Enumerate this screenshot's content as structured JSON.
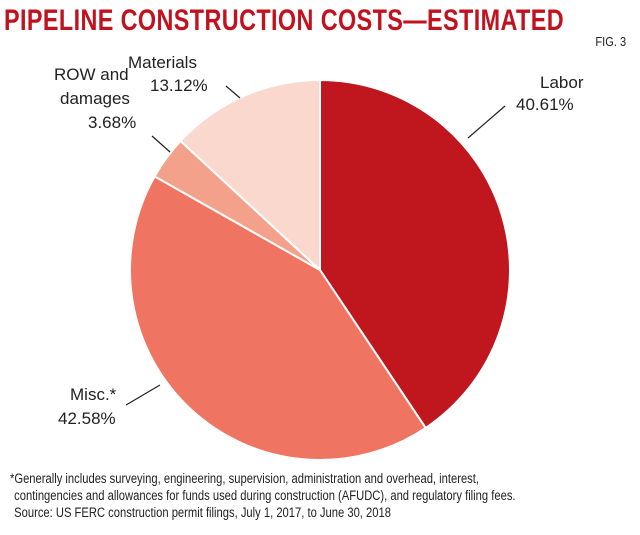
{
  "chart_data": {
    "type": "pie",
    "title": "PIPELINE CONSTRUCTION COSTS—ESTIMATED",
    "figure_label": "FIG. 3",
    "slices": [
      {
        "label": "Labor",
        "value": 40.61,
        "value_label": "40.61%",
        "color": "#c0161e"
      },
      {
        "label": "Misc.*",
        "value": 42.58,
        "value_label": "42.58%",
        "color": "#f07462"
      },
      {
        "label": "ROW and damages",
        "label_lines": [
          "ROW and",
          "damages"
        ],
        "value": 3.68,
        "value_label": "3.68%",
        "color": "#f4a18c"
      },
      {
        "label": "Materials",
        "value": 13.12,
        "value_label": "13.12%",
        "color": "#fbd8cd"
      }
    ],
    "start": "top",
    "direction": "clockwise",
    "footnotes": [
      "*Generally includes surveying, engineering, supervision, administration and overhead, interest,",
      "contingencies and allowances for funds used during construction (AFUDC), and regulatory filing fees.",
      "Source: US FERC construction permit filings, July 1, 2017, to June 30, 2018"
    ]
  }
}
